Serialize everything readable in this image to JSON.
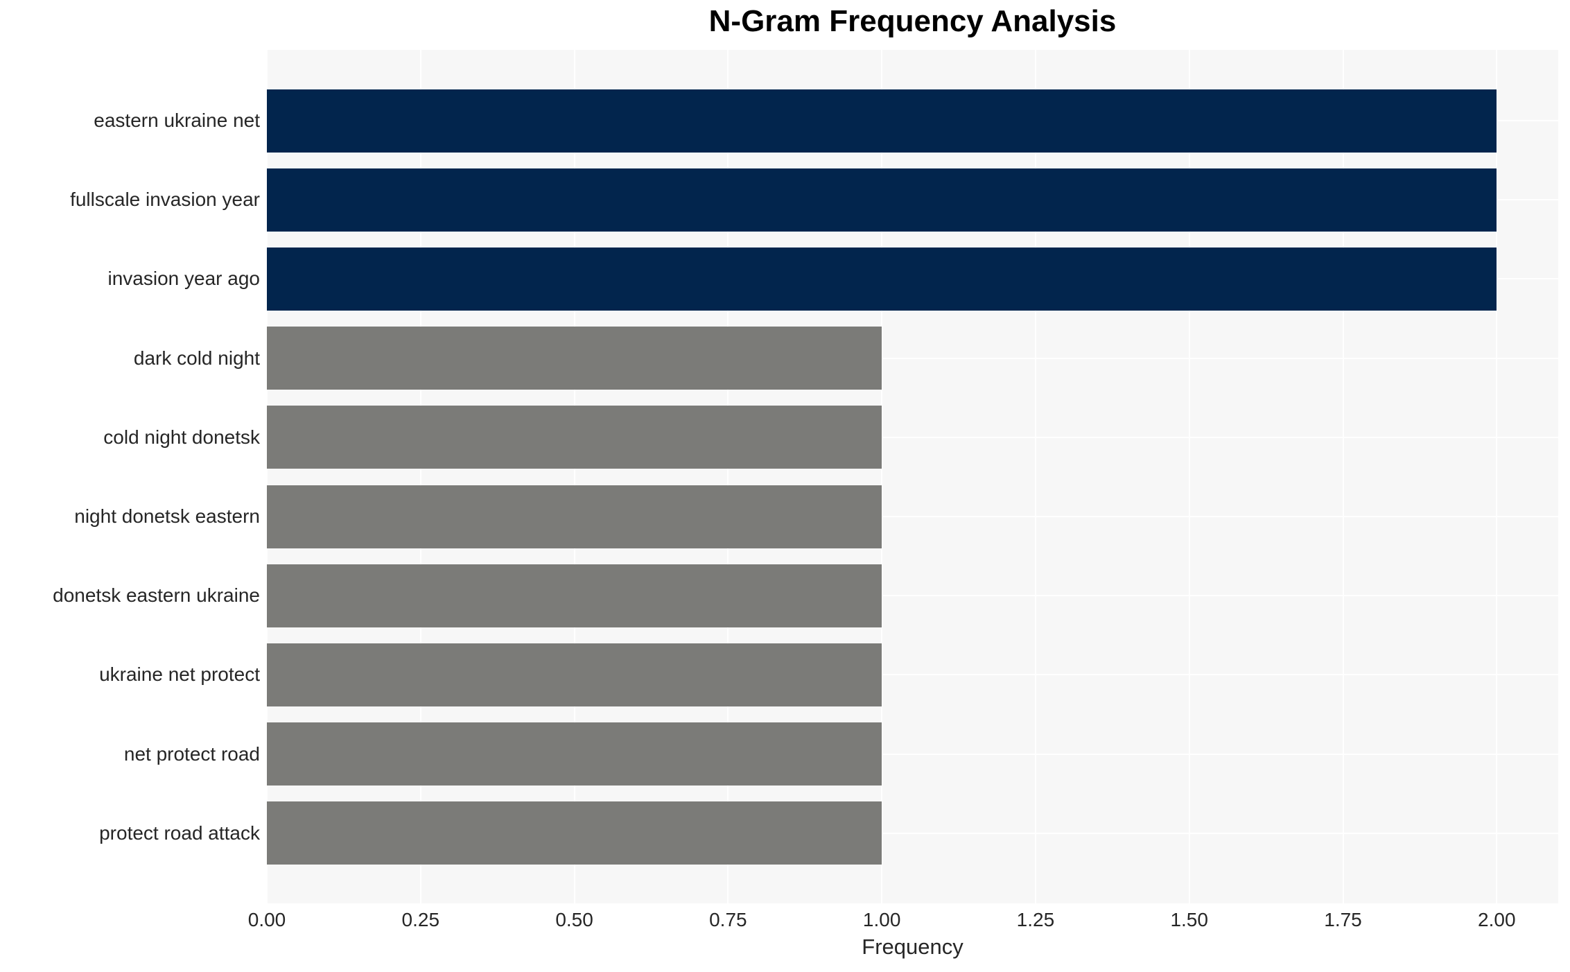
{
  "chart_data": {
    "type": "bar",
    "orientation": "horizontal",
    "title": "N-Gram Frequency Analysis",
    "xlabel": "Frequency",
    "ylabel": "",
    "categories": [
      "eastern ukraine net",
      "fullscale invasion year",
      "invasion year ago",
      "dark cold night",
      "cold night donetsk",
      "night donetsk eastern",
      "donetsk eastern ukraine",
      "ukraine net protect",
      "net protect road",
      "protect road attack"
    ],
    "values": [
      2,
      2,
      2,
      1,
      1,
      1,
      1,
      1,
      1,
      1
    ],
    "x_ticks": [
      {
        "value": 0.0,
        "label": "0.00"
      },
      {
        "value": 0.25,
        "label": "0.25"
      },
      {
        "value": 0.5,
        "label": "0.50"
      },
      {
        "value": 0.75,
        "label": "0.75"
      },
      {
        "value": 1.0,
        "label": "1.00"
      },
      {
        "value": 1.25,
        "label": "1.25"
      },
      {
        "value": 1.5,
        "label": "1.50"
      },
      {
        "value": 1.75,
        "label": "1.75"
      },
      {
        "value": 2.0,
        "label": "2.00"
      }
    ],
    "xlim": [
      0,
      2.1
    ],
    "grid": true,
    "legend": null,
    "colors": {
      "bar_high_freq": "#02254d",
      "bar_low_freq": "#7b7b78",
      "plot_background": "#f7f7f7",
      "gridline": "#ffffff",
      "tick_text": "#262626",
      "title_text": "#000000"
    }
  }
}
